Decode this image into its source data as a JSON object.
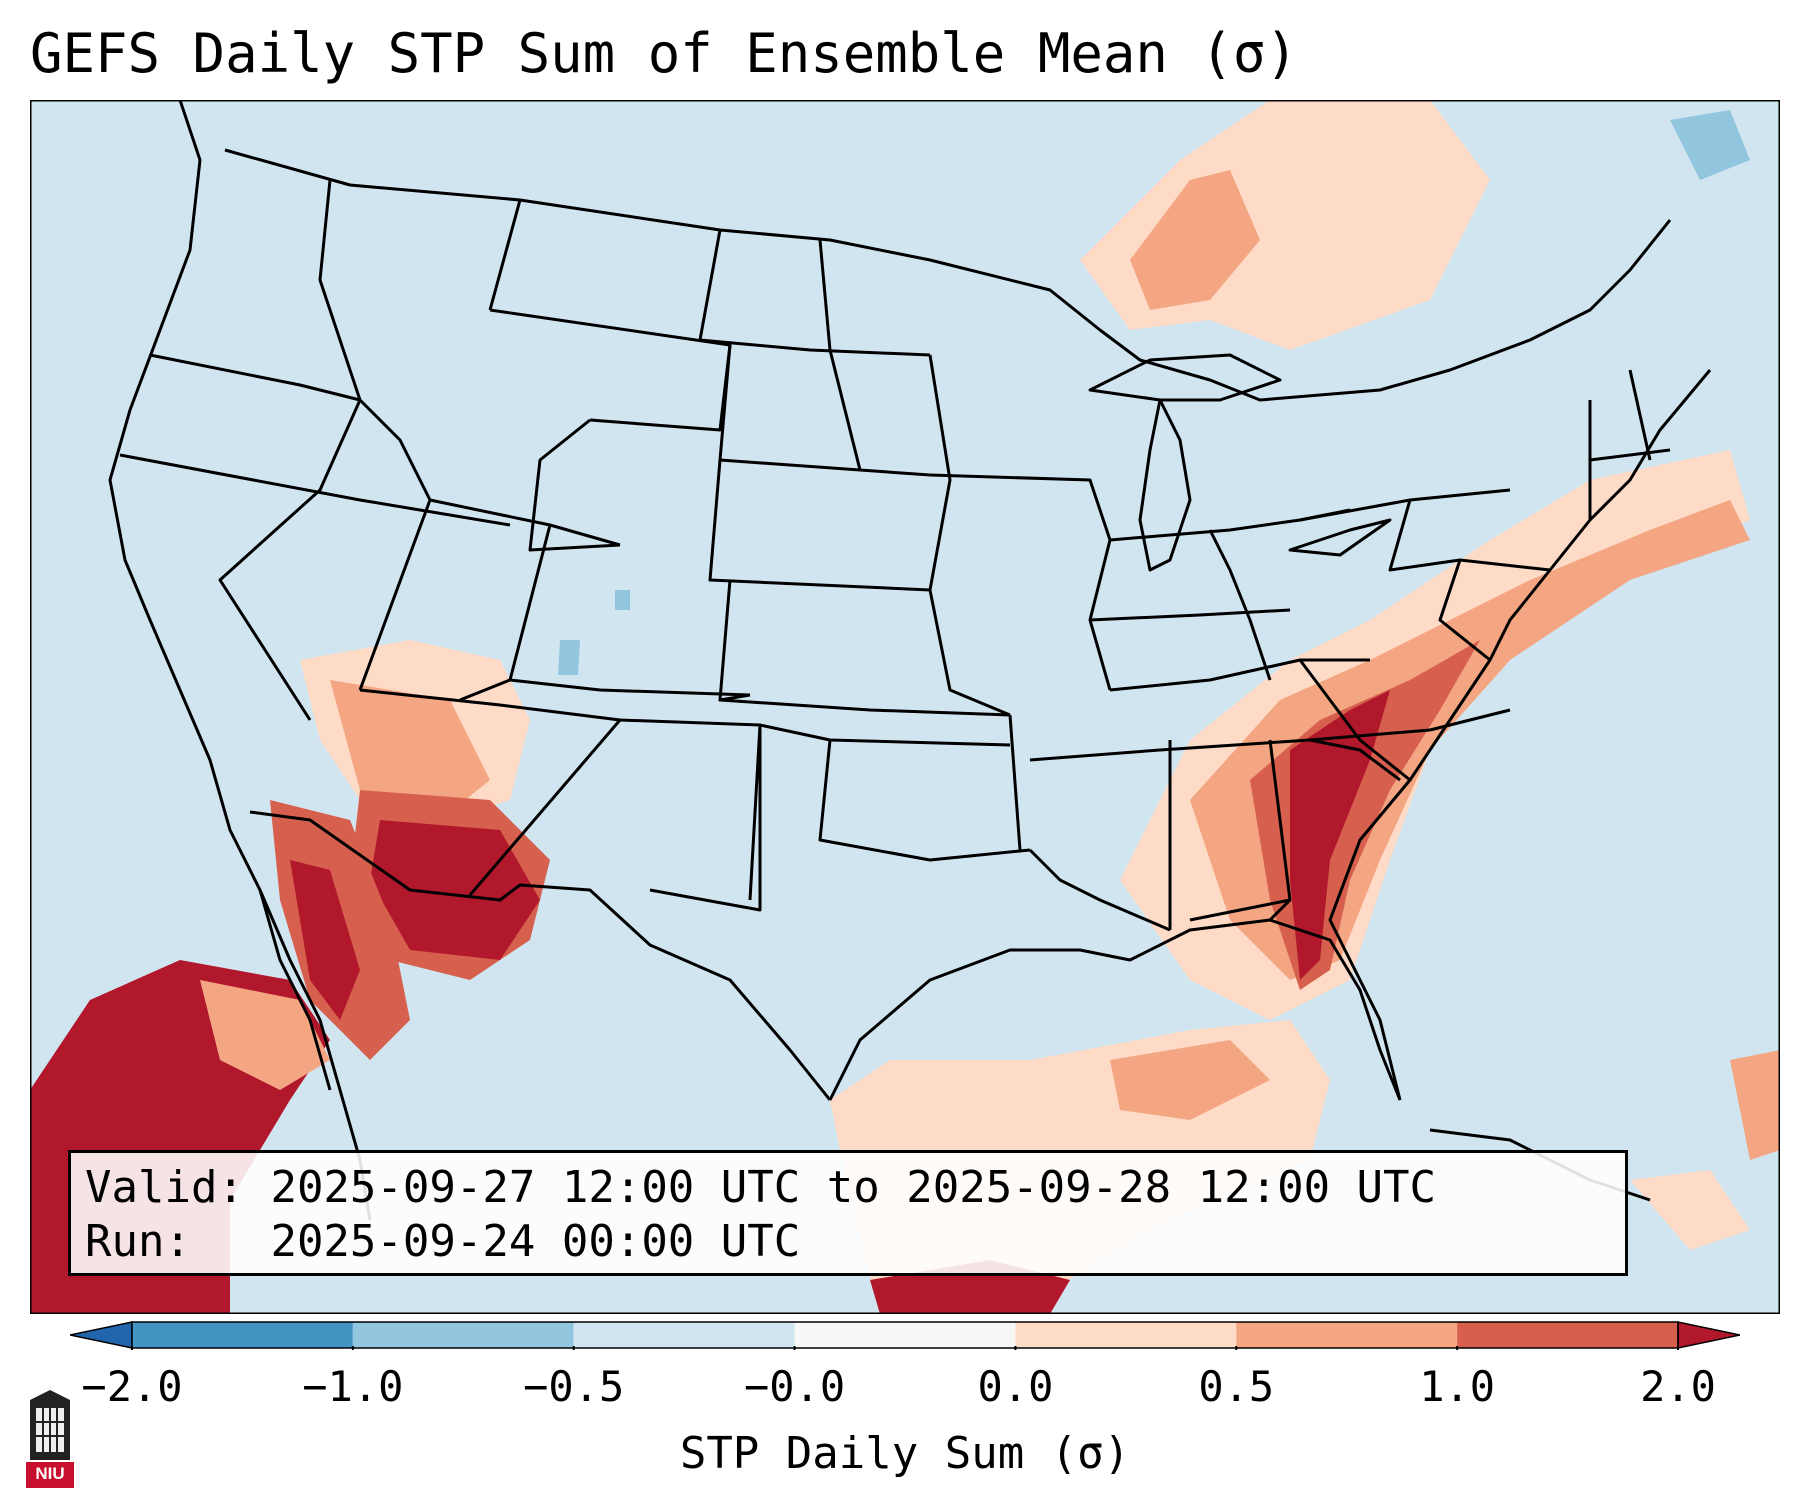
{
  "title": "GEFS Daily STP Sum of Ensemble Mean (σ)",
  "info": {
    "valid_label": "Valid:",
    "valid_value": "2025-09-27 12:00 UTC to 2025-09-28 12:00 UTC",
    "run_label": "Run:",
    "run_value": "2025-09-24 00:00 UTC"
  },
  "colorbar": {
    "label": "STP Daily Sum (σ)",
    "ticks": [
      "−2.0",
      "−1.0",
      "−0.5",
      "−0.0",
      "0.0",
      "0.5",
      "1.0",
      "2.0"
    ],
    "colors": [
      "#4393c3",
      "#92c5de",
      "#d1e5f0",
      "#f7f7f7",
      "#fddbc7",
      "#f4a582",
      "#d6604d"
    ],
    "extend_low_color": "#2166ac",
    "extend_high_color": "#b2182b"
  },
  "map": {
    "background_color": "#d1e5f0",
    "region": "Continental United States",
    "legend_levels": {
      "light": "#fddbc7",
      "medium": "#f4a582",
      "strong": "#d6604d",
      "extreme": "#b2182b",
      "neg_light": "#92c5de"
    }
  },
  "logo": {
    "text": "NIU",
    "color": "#c8102e"
  }
}
